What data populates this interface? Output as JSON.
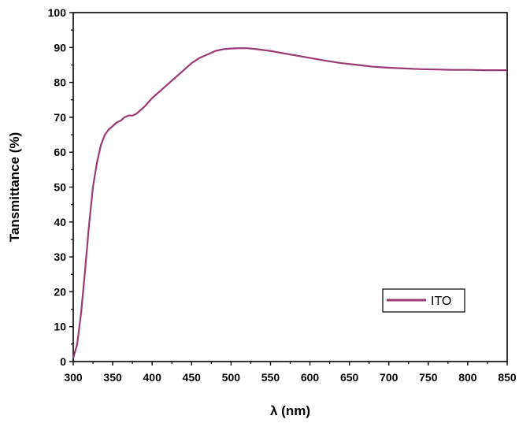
{
  "chart_data": {
    "type": "line",
    "xlabel": "λ (nm)",
    "ylabel": "Tansmittance (%)",
    "xlim": [
      300,
      850
    ],
    "ylim": [
      0,
      100
    ],
    "x_ticks": [
      300,
      350,
      400,
      450,
      500,
      550,
      600,
      650,
      700,
      750,
      800,
      850
    ],
    "y_ticks": [
      0,
      10,
      20,
      30,
      40,
      50,
      60,
      70,
      80,
      90,
      100
    ],
    "grid": false,
    "legend_position": "bottom-right",
    "series": [
      {
        "name": "ITO",
        "color": "#9B3A72",
        "x": [
          300,
          305,
          310,
          315,
          320,
          325,
          330,
          335,
          340,
          345,
          350,
          355,
          360,
          365,
          370,
          375,
          380,
          385,
          390,
          400,
          410,
          420,
          430,
          440,
          450,
          460,
          470,
          480,
          490,
          500,
          510,
          520,
          530,
          540,
          550,
          560,
          570,
          580,
          590,
          600,
          620,
          640,
          660,
          680,
          700,
          720,
          740,
          760,
          780,
          800,
          820,
          840,
          850
        ],
        "y": [
          1,
          5,
          14,
          26,
          39,
          50,
          57,
          62,
          65,
          66.5,
          67.5,
          68.5,
          69,
          70,
          70.5,
          70.5,
          71,
          72,
          73,
          75.5,
          77.5,
          79.5,
          81.5,
          83.5,
          85.5,
          87,
          88,
          89,
          89.5,
          89.7,
          89.8,
          89.8,
          89.6,
          89.3,
          89,
          88.6,
          88.2,
          87.8,
          87.4,
          87,
          86.2,
          85.5,
          85,
          84.5,
          84.2,
          84,
          83.8,
          83.7,
          83.6,
          83.6,
          83.5,
          83.5,
          83.5
        ]
      }
    ]
  }
}
